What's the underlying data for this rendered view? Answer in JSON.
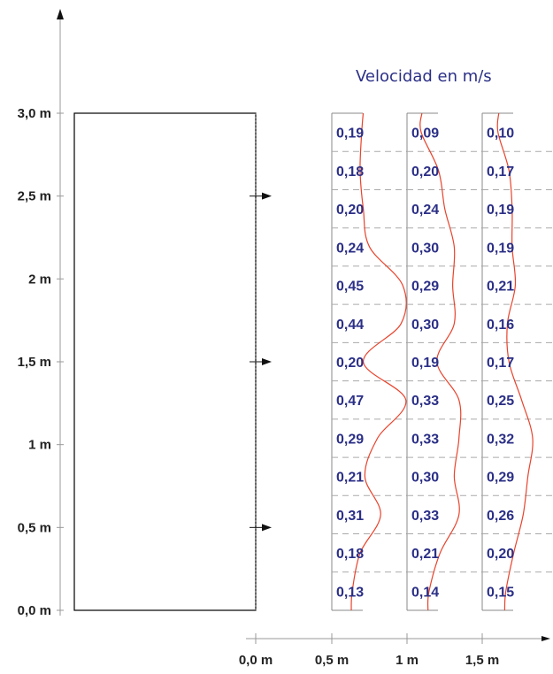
{
  "title": "Velocidad en m/s",
  "y_ticks": [
    {
      "label": "0,0 m",
      "value": 0.0
    },
    {
      "label": "0,5 m",
      "value": 0.5
    },
    {
      "label": "1 m",
      "value": 1.0
    },
    {
      "label": "1,5 m",
      "value": 1.5
    },
    {
      "label": "2 m",
      "value": 2.0
    },
    {
      "label": "2,5 m",
      "value": 2.5
    },
    {
      "label": "3,0 m",
      "value": 3.0
    }
  ],
  "x_ticks": [
    {
      "label": "0,0 m",
      "value": 0.0
    },
    {
      "label": "0,5 m",
      "value": 0.5
    },
    {
      "label": "1 m",
      "value": 1.0
    },
    {
      "label": "1,5 m",
      "value": 1.5
    }
  ],
  "inlet_heights_m": [
    0.5,
    1.5,
    2.5
  ],
  "profiles": [
    {
      "position_m": 0.5,
      "labels": [
        "0,13",
        "0,18",
        "0,31",
        "0,21",
        "0,29",
        "0,47",
        "0,20",
        "0,44",
        "0,45",
        "0,24",
        "0,20",
        "0,18",
        "0,19"
      ],
      "values": [
        0.13,
        0.18,
        0.31,
        0.21,
        0.29,
        0.47,
        0.2,
        0.44,
        0.45,
        0.24,
        0.2,
        0.18,
        0.19
      ]
    },
    {
      "position_m": 1.0,
      "labels": [
        "0,14",
        "0,21",
        "0,33",
        "0,30",
        "0,33",
        "0,33",
        "0,19",
        "0,30",
        "0,29",
        "0,30",
        "0,24",
        "0,20",
        "0,09"
      ],
      "values": [
        0.14,
        0.21,
        0.33,
        0.3,
        0.33,
        0.33,
        0.19,
        0.3,
        0.29,
        0.3,
        0.24,
        0.2,
        0.09
      ]
    },
    {
      "position_m": 1.5,
      "labels": [
        "0,15",
        "0,20",
        "0,26",
        "0,29",
        "0,32",
        "0,25",
        "0,17",
        "0,16",
        "0,21",
        "0,19",
        "0,19",
        "0,17",
        "0,10"
      ],
      "values": [
        0.15,
        0.2,
        0.26,
        0.29,
        0.32,
        0.25,
        0.17,
        0.16,
        0.21,
        0.19,
        0.19,
        0.17,
        0.1
      ]
    }
  ]
}
